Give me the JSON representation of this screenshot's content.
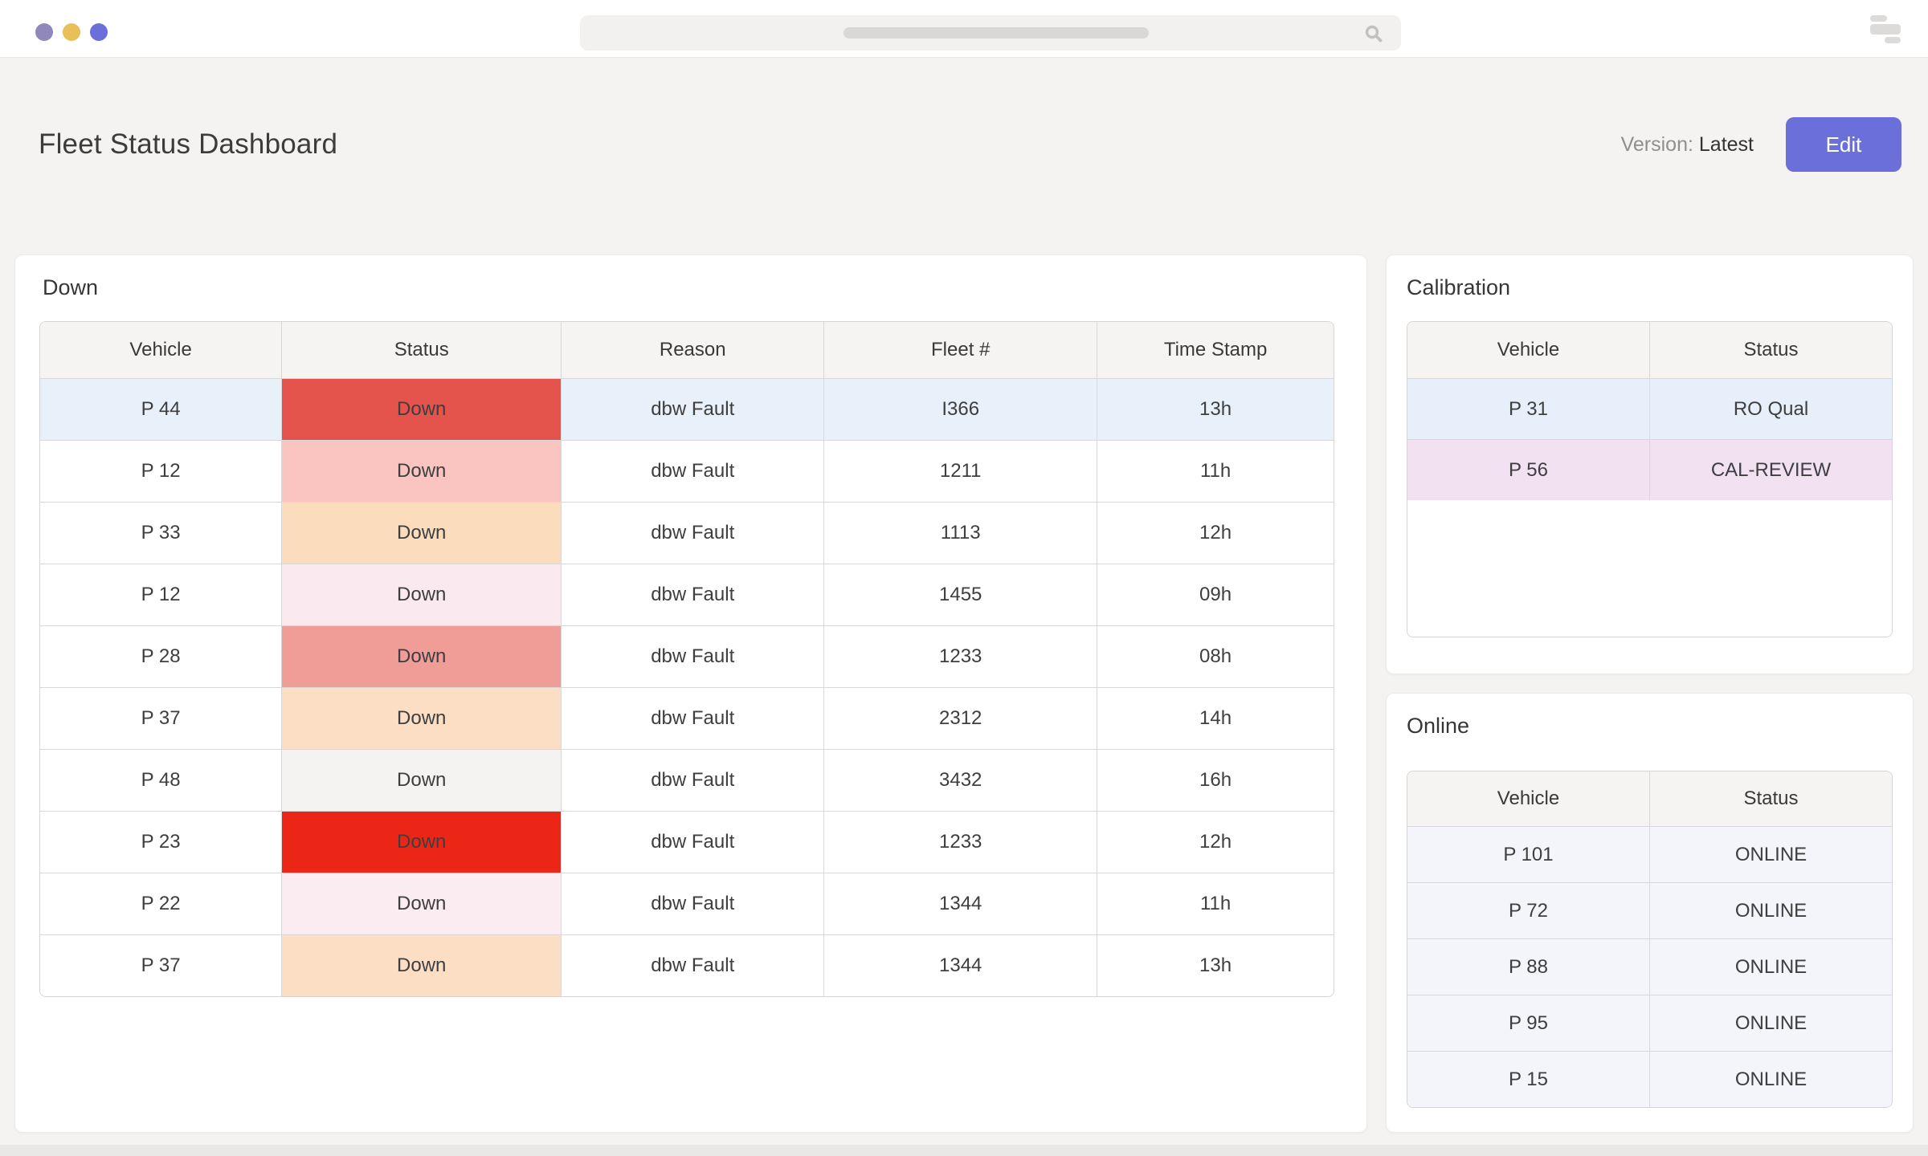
{
  "topbar": {
    "window_controls": [
      {
        "name": "window-dot-1",
        "color": "#9087BB"
      },
      {
        "name": "window-dot-2",
        "color": "#E9C058"
      },
      {
        "name": "window-dot-3",
        "color": "#6B6FD9"
      }
    ],
    "search": {
      "icon": "search-icon",
      "value": ""
    },
    "menu_icon": "menu-icon"
  },
  "header": {
    "title": "Fleet Status Dashboard",
    "version_label": "Version:",
    "version_value": "Latest",
    "edit_label": "Edit",
    "accent_color": "#6B6FD9"
  },
  "down_panel": {
    "title": "Down",
    "columns": [
      "Vehicle",
      "Status",
      "Reason",
      "Fleet #",
      "Time Stamp"
    ],
    "rows": [
      {
        "vehicle": "P 44",
        "status": "Down",
        "reason": "dbw Fault",
        "fleet": "I366",
        "time": "13h",
        "status_bg": "#E5534D",
        "row_bg": "#E8F0FA"
      },
      {
        "vehicle": "P 12",
        "status": "Down",
        "reason": "dbw Fault",
        "fleet": "1211",
        "time": "11h",
        "status_bg": "#FAC5C1",
        "row_bg": "#FFFFFF"
      },
      {
        "vehicle": "P 33",
        "status": "Down",
        "reason": "dbw Fault",
        "fleet": "1113",
        "time": "12h",
        "status_bg": "#FBDDBE",
        "row_bg": "#FFFFFF"
      },
      {
        "vehicle": "P 12",
        "status": "Down",
        "reason": "dbw Fault",
        "fleet": "1455",
        "time": "09h",
        "status_bg": "#FAEAF0",
        "row_bg": "#FFFFFF"
      },
      {
        "vehicle": "P 28",
        "status": "Down",
        "reason": "dbw Fault",
        "fleet": "1233",
        "time": "08h",
        "status_bg": "#F09C97",
        "row_bg": "#FFFFFF"
      },
      {
        "vehicle": "P 37",
        "status": "Down",
        "reason": "dbw Fault",
        "fleet": "2312",
        "time": "14h",
        "status_bg": "#FBDEC3",
        "row_bg": "#FFFFFF"
      },
      {
        "vehicle": "P 48",
        "status": "Down",
        "reason": "dbw Fault",
        "fleet": "3432",
        "time": "16h",
        "status_bg": "#F4F3F1",
        "row_bg": "#FFFFFF"
      },
      {
        "vehicle": "P 23",
        "status": "Down",
        "reason": "dbw Fault",
        "fleet": "1233",
        "time": "12h",
        "status_bg": "#EC2617",
        "row_bg": "#FFFFFF"
      },
      {
        "vehicle": "P 22",
        "status": "Down",
        "reason": "dbw Fault",
        "fleet": "1344",
        "time": "11h",
        "status_bg": "#FBECF2",
        "row_bg": "#FFFFFF"
      },
      {
        "vehicle": "P 37",
        "status": "Down",
        "reason": "dbw Fault",
        "fleet": "1344",
        "time": "13h",
        "status_bg": "#FBDEC3",
        "row_bg": "#FFFFFF"
      }
    ]
  },
  "calibration_panel": {
    "title": "Calibration",
    "columns": [
      "Vehicle",
      "Status"
    ],
    "rows": [
      {
        "vehicle": "P 31",
        "status": "RO Qual",
        "row_bg": "#E7EFFA"
      },
      {
        "vehicle": "P 56",
        "status": "CAL-REVIEW",
        "row_bg": "#F2E2F1"
      }
    ]
  },
  "online_panel": {
    "title": "Online",
    "columns": [
      "Vehicle",
      "Status"
    ],
    "rows": [
      {
        "vehicle": "P 101",
        "status": "ONLINE",
        "row_bg": "#F4F4FB"
      },
      {
        "vehicle": "P 72",
        "status": "ONLINE",
        "row_bg": "#F4F4FB"
      },
      {
        "vehicle": "P 88",
        "status": "ONLINE",
        "row_bg": "#F4F4FB"
      },
      {
        "vehicle": "P 95",
        "status": "ONLINE",
        "row_bg": "#F4F4FB"
      },
      {
        "vehicle": "P 15",
        "status": "ONLINE",
        "row_bg": "#F4F4FB"
      }
    ]
  }
}
